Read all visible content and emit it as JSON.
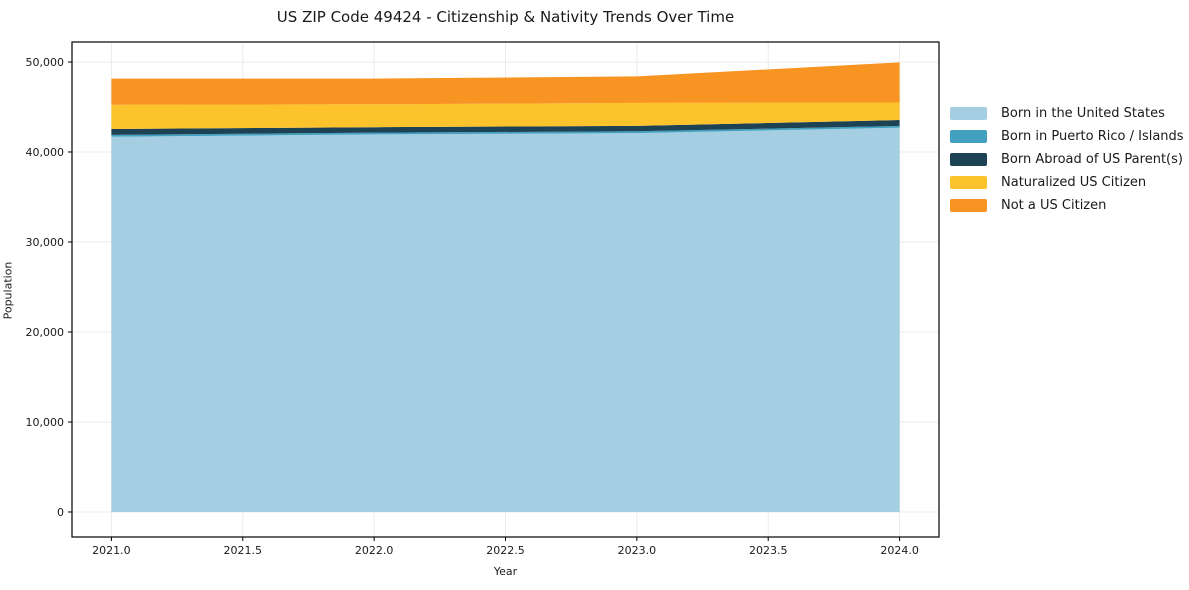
{
  "chart_data": {
    "type": "area",
    "stacked": true,
    "title": "US ZIP Code 49424 - Citizenship & Nativity Trends Over Time",
    "xlabel": "Year",
    "ylabel": "Population",
    "x": [
      2021,
      2022,
      2023,
      2024
    ],
    "series": [
      {
        "name": "Born in the United States",
        "color": "#a6cee3",
        "values": [
          41700,
          41950,
          42100,
          42700
        ]
      },
      {
        "name": "Born in Puerto Rico / Islands",
        "color": "#41a1bf",
        "values": [
          200,
          200,
          200,
          200
        ]
      },
      {
        "name": "Born Abroad of US Parent(s)",
        "color": "#1d4254",
        "values": [
          650,
          600,
          600,
          650
        ]
      },
      {
        "name": "Naturalized US Citizen",
        "color": "#fdc32d",
        "values": [
          2700,
          2550,
          2550,
          1950
        ]
      },
      {
        "name": "Not a US Citizen",
        "color": "#f89522",
        "values": [
          2900,
          2850,
          2950,
          4450
        ]
      }
    ],
    "totals": [
      48150,
      48150,
      48400,
      49950
    ],
    "xticks": [
      2021.0,
      2021.5,
      2022.0,
      2022.5,
      2023.0,
      2023.5,
      2024.0
    ],
    "xtick_labels": [
      "2021.0",
      "2021.5",
      "2022.0",
      "2022.5",
      "2023.0",
      "2023.5",
      "2024.0"
    ],
    "yticks": [
      0,
      10000,
      20000,
      30000,
      40000,
      50000
    ],
    "ytick_labels": [
      "0",
      "10,000",
      "20,000",
      "30,000",
      "40,000",
      "50,000"
    ],
    "xlim": [
      2020.85,
      2024.15
    ],
    "ylim": [
      -2780,
      52220
    ],
    "grid": true,
    "grid_color": "#ebebeb",
    "spine_color": "#000000",
    "tick_label_color": "#1a1a1a",
    "legend_position": "right-outside"
  }
}
